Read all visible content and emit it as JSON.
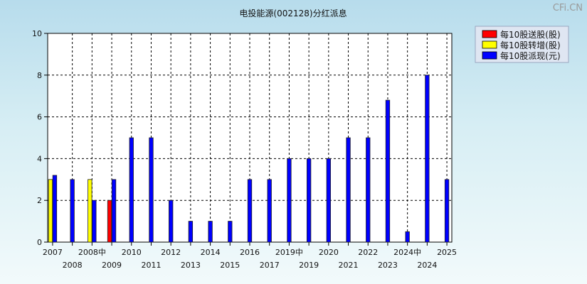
{
  "watermark": "CFi.CN",
  "chart_data": {
    "type": "bar",
    "title": "电投能源(002128)分红派息",
    "ylim": [
      0,
      10
    ],
    "yticks": [
      0,
      2,
      4,
      6,
      8,
      10
    ],
    "grid": true,
    "legend_position": "top-right",
    "periods": [
      "2007",
      "2008",
      "2008中",
      "2009",
      "2010",
      "2011",
      "2012",
      "2013",
      "2014",
      "2015",
      "2016",
      "2017",
      "2019中",
      "2019",
      "2020",
      "2021",
      "2022",
      "2023",
      "2024中",
      "2024",
      "2025"
    ],
    "series": [
      {
        "name": "每10股送股(股)",
        "color": "#ff0000",
        "values": [
          0,
          0,
          0,
          2,
          0,
          0,
          0,
          0,
          0,
          0,
          0,
          0,
          0,
          0,
          0,
          0,
          0,
          0,
          0,
          0,
          0
        ]
      },
      {
        "name": "每10股转增(股)",
        "color": "#ffff00",
        "values": [
          3,
          0,
          3,
          0,
          0,
          0,
          0,
          0,
          0,
          0,
          0,
          0,
          0,
          0,
          0,
          0,
          0,
          0,
          0,
          0,
          0
        ]
      },
      {
        "name": "每10股派现(元)",
        "color": "#0000ff",
        "values": [
          3.2,
          3,
          2,
          3,
          5,
          5,
          2,
          1,
          1,
          1,
          3,
          3,
          4,
          4,
          4,
          5,
          5,
          6.8,
          0.5,
          8,
          3
        ]
      }
    ]
  }
}
